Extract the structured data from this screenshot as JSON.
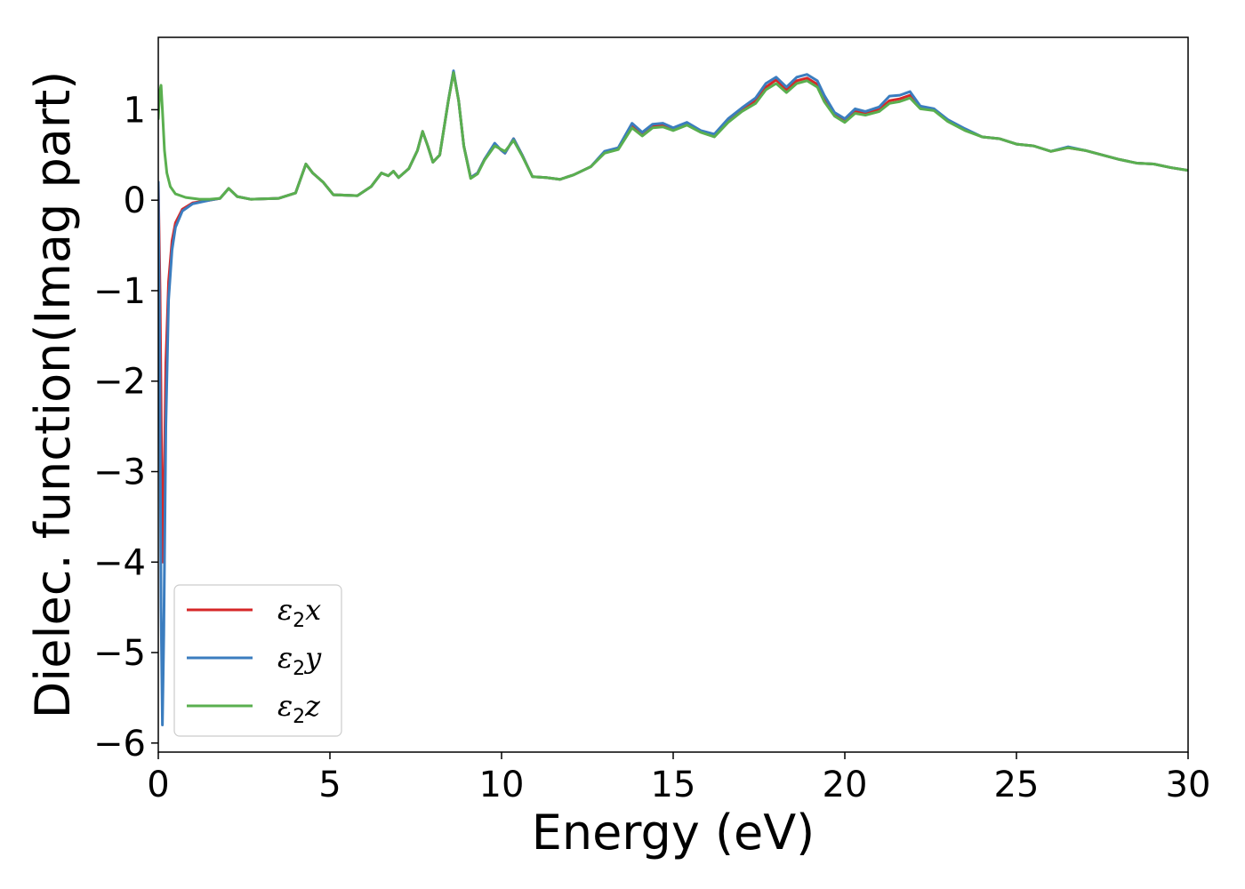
{
  "chart_data": {
    "type": "line",
    "title": "",
    "xlabel": "Energy (eV)",
    "ylabel": "Dielec. function(Imag part)",
    "xlim": [
      0,
      30
    ],
    "ylim": [
      -6.1,
      1.8
    ],
    "xticks": [
      0,
      5,
      10,
      15,
      20,
      25,
      30
    ],
    "yticks": [
      -6,
      -5,
      -4,
      -3,
      -2,
      -1,
      0,
      1
    ],
    "grid": false,
    "legend_position": "lower-left",
    "series": [
      {
        "name": "ε2x",
        "legend_main": "ε",
        "legend_sub": "2",
        "legend_tail": "x",
        "color": "#d62728",
        "points": [
          [
            0,
            0.2
          ],
          [
            0.05,
            -1.0
          ],
          [
            0.1,
            -3.0
          ],
          [
            0.13,
            -4.0
          ],
          [
            0.17,
            -3.2
          ],
          [
            0.22,
            -1.8
          ],
          [
            0.3,
            -0.9
          ],
          [
            0.4,
            -0.45
          ],
          [
            0.5,
            -0.25
          ],
          [
            0.7,
            -0.1
          ],
          [
            1.0,
            -0.03
          ],
          [
            1.5,
            0.0
          ],
          [
            1.8,
            0.02
          ],
          [
            2.05,
            0.13
          ],
          [
            2.3,
            0.04
          ],
          [
            2.7,
            0.01
          ],
          [
            3.5,
            0.02
          ],
          [
            4.0,
            0.08
          ],
          [
            4.3,
            0.4
          ],
          [
            4.5,
            0.3
          ],
          [
            4.8,
            0.2
          ],
          [
            5.1,
            0.06
          ],
          [
            5.8,
            0.05
          ],
          [
            6.2,
            0.15
          ],
          [
            6.5,
            0.3
          ],
          [
            6.7,
            0.27
          ],
          [
            6.85,
            0.32
          ],
          [
            7.0,
            0.25
          ],
          [
            7.3,
            0.35
          ],
          [
            7.55,
            0.55
          ],
          [
            7.7,
            0.76
          ],
          [
            7.85,
            0.6
          ],
          [
            8.0,
            0.42
          ],
          [
            8.2,
            0.5
          ],
          [
            8.45,
            1.1
          ],
          [
            8.6,
            1.42
          ],
          [
            8.75,
            1.1
          ],
          [
            8.9,
            0.6
          ],
          [
            9.1,
            0.25
          ],
          [
            9.3,
            0.3
          ],
          [
            9.5,
            0.45
          ],
          [
            9.8,
            0.62
          ],
          [
            10.0,
            0.55
          ],
          [
            10.1,
            0.52
          ],
          [
            10.35,
            0.68
          ],
          [
            10.6,
            0.5
          ],
          [
            10.9,
            0.26
          ],
          [
            11.3,
            0.25
          ],
          [
            11.7,
            0.23
          ],
          [
            12.1,
            0.28
          ],
          [
            12.6,
            0.37
          ],
          [
            13.0,
            0.53
          ],
          [
            13.4,
            0.57
          ],
          [
            13.8,
            0.82
          ],
          [
            14.1,
            0.73
          ],
          [
            14.4,
            0.82
          ],
          [
            14.7,
            0.83
          ],
          [
            15.0,
            0.78
          ],
          [
            15.4,
            0.84
          ],
          [
            15.8,
            0.76
          ],
          [
            16.2,
            0.72
          ],
          [
            16.6,
            0.88
          ],
          [
            17.0,
            1.0
          ],
          [
            17.4,
            1.1
          ],
          [
            17.7,
            1.25
          ],
          [
            18.0,
            1.33
          ],
          [
            18.3,
            1.22
          ],
          [
            18.6,
            1.32
          ],
          [
            18.9,
            1.35
          ],
          [
            19.2,
            1.28
          ],
          [
            19.4,
            1.12
          ],
          [
            19.7,
            0.95
          ],
          [
            20.0,
            0.88
          ],
          [
            20.3,
            0.98
          ],
          [
            20.6,
            0.96
          ],
          [
            21.0,
            1.0
          ],
          [
            21.3,
            1.1
          ],
          [
            21.6,
            1.12
          ],
          [
            21.9,
            1.16
          ],
          [
            22.2,
            1.03
          ],
          [
            22.6,
            1.0
          ],
          [
            23.0,
            0.88
          ],
          [
            23.5,
            0.78
          ],
          [
            24.0,
            0.7
          ],
          [
            24.5,
            0.68
          ],
          [
            25.0,
            0.62
          ],
          [
            25.5,
            0.6
          ],
          [
            26.0,
            0.54
          ],
          [
            26.5,
            0.58
          ],
          [
            27.0,
            0.55
          ],
          [
            27.5,
            0.5
          ],
          [
            28.0,
            0.45
          ],
          [
            28.5,
            0.41
          ],
          [
            29.0,
            0.4
          ],
          [
            29.5,
            0.36
          ],
          [
            30.0,
            0.33
          ]
        ]
      },
      {
        "name": "ε2y",
        "legend_main": "ε",
        "legend_sub": "2",
        "legend_tail": "y",
        "color": "#3b7dbf",
        "points": [
          [
            0,
            0.2
          ],
          [
            0.04,
            -1.5
          ],
          [
            0.08,
            -4.5
          ],
          [
            0.12,
            -5.8
          ],
          [
            0.16,
            -4.8
          ],
          [
            0.22,
            -2.5
          ],
          [
            0.3,
            -1.1
          ],
          [
            0.4,
            -0.55
          ],
          [
            0.5,
            -0.3
          ],
          [
            0.7,
            -0.12
          ],
          [
            1.0,
            -0.04
          ],
          [
            1.5,
            0.0
          ],
          [
            1.8,
            0.02
          ],
          [
            2.05,
            0.13
          ],
          [
            2.3,
            0.04
          ],
          [
            2.7,
            0.01
          ],
          [
            3.5,
            0.02
          ],
          [
            4.0,
            0.08
          ],
          [
            4.3,
            0.4
          ],
          [
            4.5,
            0.3
          ],
          [
            4.8,
            0.2
          ],
          [
            5.1,
            0.06
          ],
          [
            5.8,
            0.05
          ],
          [
            6.2,
            0.15
          ],
          [
            6.5,
            0.3
          ],
          [
            6.7,
            0.27
          ],
          [
            6.85,
            0.32
          ],
          [
            7.0,
            0.25
          ],
          [
            7.3,
            0.35
          ],
          [
            7.55,
            0.55
          ],
          [
            7.7,
            0.76
          ],
          [
            7.85,
            0.6
          ],
          [
            8.0,
            0.42
          ],
          [
            8.2,
            0.5
          ],
          [
            8.45,
            1.1
          ],
          [
            8.6,
            1.43
          ],
          [
            8.75,
            1.1
          ],
          [
            8.9,
            0.6
          ],
          [
            9.1,
            0.25
          ],
          [
            9.3,
            0.3
          ],
          [
            9.5,
            0.45
          ],
          [
            9.8,
            0.63
          ],
          [
            10.0,
            0.55
          ],
          [
            10.1,
            0.52
          ],
          [
            10.35,
            0.68
          ],
          [
            10.6,
            0.5
          ],
          [
            10.9,
            0.26
          ],
          [
            11.3,
            0.25
          ],
          [
            11.7,
            0.23
          ],
          [
            12.1,
            0.28
          ],
          [
            12.6,
            0.37
          ],
          [
            13.0,
            0.54
          ],
          [
            13.4,
            0.58
          ],
          [
            13.8,
            0.85
          ],
          [
            14.1,
            0.75
          ],
          [
            14.4,
            0.84
          ],
          [
            14.7,
            0.85
          ],
          [
            15.0,
            0.8
          ],
          [
            15.4,
            0.86
          ],
          [
            15.8,
            0.77
          ],
          [
            16.2,
            0.73
          ],
          [
            16.6,
            0.9
          ],
          [
            17.0,
            1.02
          ],
          [
            17.4,
            1.13
          ],
          [
            17.7,
            1.29
          ],
          [
            18.0,
            1.36
          ],
          [
            18.3,
            1.25
          ],
          [
            18.6,
            1.36
          ],
          [
            18.9,
            1.39
          ],
          [
            19.2,
            1.32
          ],
          [
            19.4,
            1.16
          ],
          [
            19.7,
            0.97
          ],
          [
            20.0,
            0.9
          ],
          [
            20.3,
            1.01
          ],
          [
            20.6,
            0.98
          ],
          [
            21.0,
            1.03
          ],
          [
            21.3,
            1.15
          ],
          [
            21.6,
            1.16
          ],
          [
            21.9,
            1.2
          ],
          [
            22.2,
            1.04
          ],
          [
            22.6,
            1.01
          ],
          [
            23.0,
            0.89
          ],
          [
            23.5,
            0.79
          ],
          [
            24.0,
            0.7
          ],
          [
            24.5,
            0.68
          ],
          [
            25.0,
            0.62
          ],
          [
            25.5,
            0.6
          ],
          [
            26.0,
            0.54
          ],
          [
            26.5,
            0.59
          ],
          [
            27.0,
            0.55
          ],
          [
            27.5,
            0.5
          ],
          [
            28.0,
            0.45
          ],
          [
            28.5,
            0.41
          ],
          [
            29.0,
            0.4
          ],
          [
            29.5,
            0.36
          ],
          [
            30.0,
            0.33
          ]
        ]
      },
      {
        "name": "ε2z",
        "legend_main": "ε",
        "legend_sub": "2",
        "legend_tail": "z",
        "color": "#5aaf4f",
        "points": [
          [
            0,
            0.9
          ],
          [
            0.04,
            1.2
          ],
          [
            0.08,
            1.27
          ],
          [
            0.12,
            1.0
          ],
          [
            0.18,
            0.55
          ],
          [
            0.25,
            0.3
          ],
          [
            0.35,
            0.15
          ],
          [
            0.5,
            0.07
          ],
          [
            0.8,
            0.03
          ],
          [
            1.2,
            0.01
          ],
          [
            1.5,
            0.01
          ],
          [
            1.8,
            0.02
          ],
          [
            2.05,
            0.13
          ],
          [
            2.3,
            0.04
          ],
          [
            2.7,
            0.01
          ],
          [
            3.5,
            0.02
          ],
          [
            4.0,
            0.08
          ],
          [
            4.3,
            0.4
          ],
          [
            4.5,
            0.3
          ],
          [
            4.8,
            0.2
          ],
          [
            5.1,
            0.06
          ],
          [
            5.8,
            0.05
          ],
          [
            6.2,
            0.15
          ],
          [
            6.5,
            0.3
          ],
          [
            6.7,
            0.27
          ],
          [
            6.85,
            0.32
          ],
          [
            7.0,
            0.25
          ],
          [
            7.3,
            0.35
          ],
          [
            7.55,
            0.55
          ],
          [
            7.7,
            0.76
          ],
          [
            7.85,
            0.6
          ],
          [
            8.0,
            0.42
          ],
          [
            8.2,
            0.5
          ],
          [
            8.45,
            1.1
          ],
          [
            8.6,
            1.41
          ],
          [
            8.75,
            1.1
          ],
          [
            8.9,
            0.6
          ],
          [
            9.1,
            0.24
          ],
          [
            9.3,
            0.29
          ],
          [
            9.5,
            0.44
          ],
          [
            9.8,
            0.6
          ],
          [
            10.0,
            0.56
          ],
          [
            10.1,
            0.54
          ],
          [
            10.35,
            0.66
          ],
          [
            10.6,
            0.49
          ],
          [
            10.9,
            0.26
          ],
          [
            11.3,
            0.25
          ],
          [
            11.7,
            0.23
          ],
          [
            12.1,
            0.28
          ],
          [
            12.6,
            0.37
          ],
          [
            13.0,
            0.52
          ],
          [
            13.4,
            0.56
          ],
          [
            13.8,
            0.8
          ],
          [
            14.1,
            0.71
          ],
          [
            14.4,
            0.8
          ],
          [
            14.7,
            0.81
          ],
          [
            15.0,
            0.77
          ],
          [
            15.4,
            0.83
          ],
          [
            15.8,
            0.75
          ],
          [
            16.2,
            0.7
          ],
          [
            16.6,
            0.86
          ],
          [
            17.0,
            0.98
          ],
          [
            17.4,
            1.07
          ],
          [
            17.7,
            1.22
          ],
          [
            18.0,
            1.29
          ],
          [
            18.3,
            1.19
          ],
          [
            18.6,
            1.29
          ],
          [
            18.9,
            1.32
          ],
          [
            19.2,
            1.25
          ],
          [
            19.4,
            1.09
          ],
          [
            19.7,
            0.93
          ],
          [
            20.0,
            0.86
          ],
          [
            20.3,
            0.96
          ],
          [
            20.6,
            0.94
          ],
          [
            21.0,
            0.98
          ],
          [
            21.3,
            1.07
          ],
          [
            21.6,
            1.09
          ],
          [
            21.9,
            1.13
          ],
          [
            22.2,
            1.01
          ],
          [
            22.6,
            0.99
          ],
          [
            23.0,
            0.87
          ],
          [
            23.5,
            0.77
          ],
          [
            24.0,
            0.7
          ],
          [
            24.5,
            0.68
          ],
          [
            25.0,
            0.62
          ],
          [
            25.5,
            0.6
          ],
          [
            26.0,
            0.54
          ],
          [
            26.5,
            0.58
          ],
          [
            27.0,
            0.55
          ],
          [
            27.5,
            0.5
          ],
          [
            28.0,
            0.45
          ],
          [
            28.5,
            0.41
          ],
          [
            29.0,
            0.4
          ],
          [
            29.5,
            0.36
          ],
          [
            30.0,
            0.33
          ]
        ]
      }
    ]
  }
}
